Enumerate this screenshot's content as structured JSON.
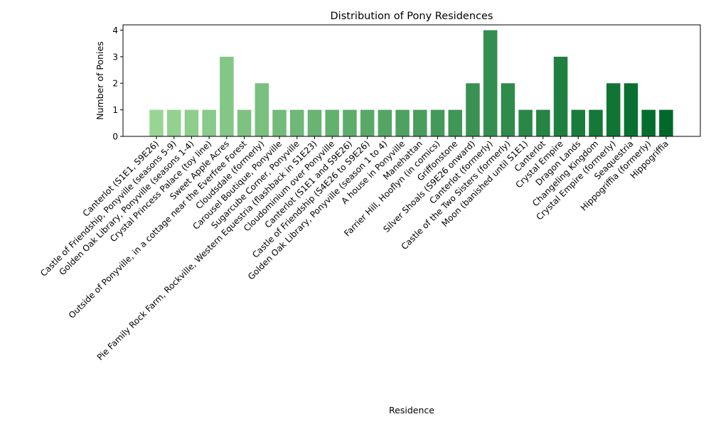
{
  "chart_data": {
    "type": "bar",
    "title": "Distribution of Pony Residences",
    "xlabel": "Residence",
    "ylabel": "Number of Ponies",
    "ylim": [
      0,
      4.2
    ],
    "yticks": [
      0,
      1,
      2,
      3,
      4
    ],
    "grid": false,
    "legend": "none",
    "categories": [
      "Canterlot (S1E1, S9E26)",
      "Castle of Friendship, Ponyville (seasons 5-9)",
      "Golden Oak Library, Ponyville (seasons 1-4)",
      "Crystal Princess Palace (toy line)",
      "Sweet Apple Acres",
      "Outside of Ponyville, in a cottage near the Everfree Forest",
      "Cloudsdale (formerly)",
      "Carousel Boutique, Ponyville",
      "Sugarcube Corner, Ponyville",
      "Pie Family Rock Farm, Rockville, Western Equestria (flashback in S1E23)",
      "Cloudominium over Ponyville",
      "Canterlot (S1E1 and S9E26)",
      "Castle of Friendship (S4E26 to S9E26)",
      "Golden Oak Library, Ponyville (season 1 to 4)",
      "A house in Ponyville",
      "Manehattan",
      "Farrier Hill, Hooflyn (in comics)",
      "Griffonstone",
      "Silver Shoals (S9E26 onward)",
      "Canterlot (formerly)",
      "Castle of the Two Sisters (formerly)",
      "Moon (banished until S1E1)",
      "Canterlot",
      "Crystal Empire",
      "Dragon Lands",
      "Changeling Kingdom",
      "Crystal Empire (formerly)",
      "Seaquestria",
      "Hippogriffia (formerly)",
      "Hippogriffia"
    ],
    "values": [
      1,
      1,
      1,
      1,
      3,
      1,
      2,
      1,
      1,
      1,
      1,
      1,
      1,
      1,
      1,
      1,
      1,
      1,
      2,
      4,
      2,
      1,
      1,
      3,
      1,
      1,
      2,
      2,
      1,
      1
    ],
    "colors": {
      "bar_start": "#98d594",
      "bar_end": "#00692a",
      "axis": "#000000",
      "background": "#ffffff"
    }
  }
}
